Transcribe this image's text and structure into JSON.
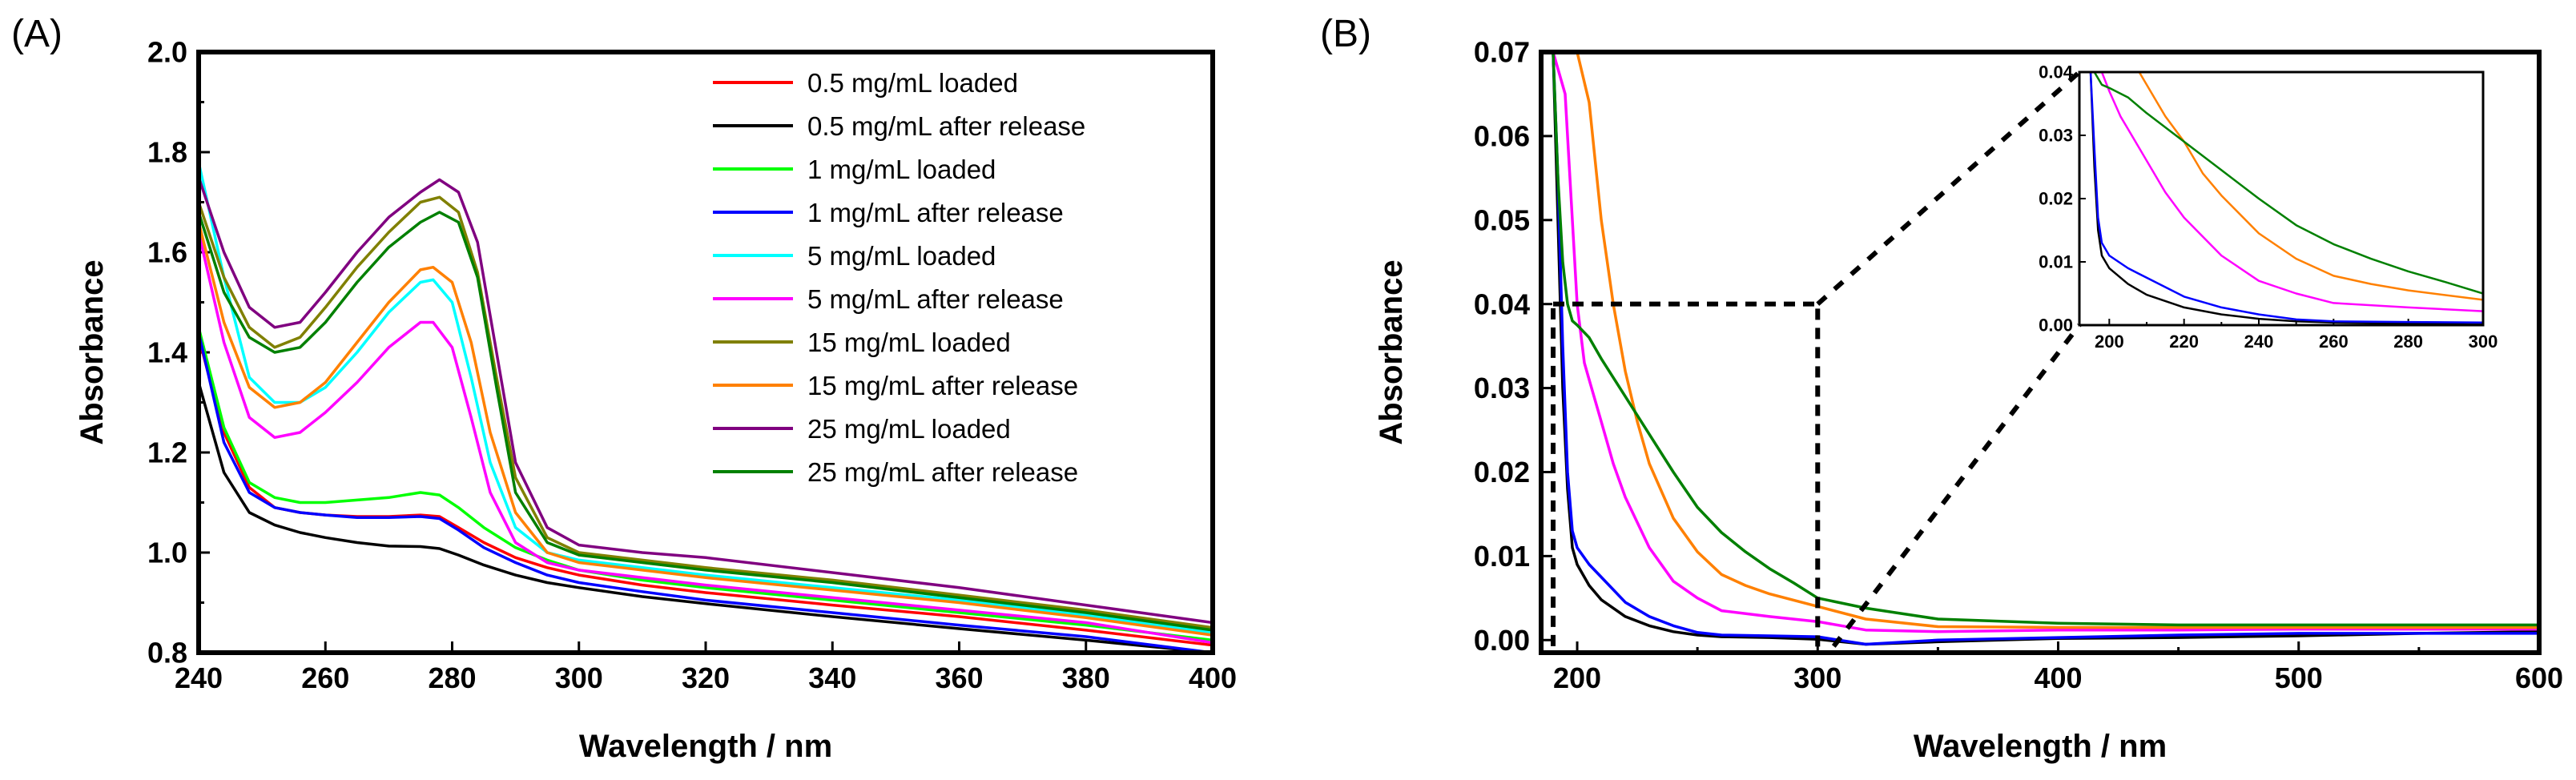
{
  "chart_data": [
    {
      "panel_label": "(A)",
      "type": "line",
      "xlabel": "Wavelength / nm",
      "ylabel": "Absorbance",
      "xlim": [
        240,
        400
      ],
      "ylim": [
        0.8,
        2.0
      ],
      "xticks": [
        240,
        260,
        280,
        300,
        320,
        340,
        360,
        380,
        400
      ],
      "xtick_labels": [
        "240",
        "260",
        "280",
        "300",
        "320",
        "340",
        "360",
        "380",
        "400"
      ],
      "yticks": [
        0.8,
        1.0,
        1.2,
        1.4,
        1.6,
        1.8,
        2.0
      ],
      "ytick_labels": [
        "0.8",
        "1.0",
        "1.2",
        "1.4",
        "1.6",
        "1.8",
        "2.0"
      ],
      "legend_position": "top-right",
      "series": [
        {
          "name": "0.5 mg/mL loaded",
          "color": "#ff0000",
          "x": [
            240,
            244,
            248,
            252,
            256,
            260,
            265,
            270,
            275,
            278,
            281,
            285,
            290,
            295,
            300,
            310,
            320,
            340,
            360,
            380,
            400
          ],
          "y": [
            1.43,
            1.24,
            1.13,
            1.09,
            1.08,
            1.075,
            1.072,
            1.072,
            1.075,
            1.072,
            1.05,
            1.02,
            0.99,
            0.97,
            0.955,
            0.935,
            0.92,
            0.895,
            0.872,
            0.845,
            0.815
          ]
        },
        {
          "name": "0.5 mg/mL after release",
          "color": "#000000",
          "x": [
            240,
            244,
            248,
            252,
            256,
            260,
            265,
            270,
            275,
            278,
            281,
            285,
            290,
            295,
            300,
            310,
            320,
            340,
            360,
            380,
            400
          ],
          "y": [
            1.34,
            1.16,
            1.08,
            1.055,
            1.04,
            1.03,
            1.02,
            1.013,
            1.012,
            1.008,
            0.995,
            0.975,
            0.955,
            0.94,
            0.93,
            0.912,
            0.898,
            0.872,
            0.848,
            0.825,
            0.8
          ]
        },
        {
          "name": "1 mg/mL loaded",
          "color": "#00ff00",
          "x": [
            240,
            244,
            248,
            252,
            256,
            260,
            265,
            270,
            275,
            278,
            281,
            285,
            290,
            295,
            300,
            310,
            320,
            340,
            360,
            380,
            400
          ],
          "y": [
            1.45,
            1.25,
            1.14,
            1.11,
            1.1,
            1.1,
            1.105,
            1.11,
            1.12,
            1.115,
            1.09,
            1.05,
            1.01,
            0.985,
            0.965,
            0.945,
            0.93,
            0.905,
            0.88,
            0.855,
            0.825
          ]
        },
        {
          "name": "1 mg/mL after release",
          "color": "#0000ff",
          "x": [
            240,
            244,
            248,
            252,
            256,
            260,
            265,
            270,
            275,
            278,
            281,
            285,
            290,
            295,
            300,
            310,
            320,
            340,
            360,
            380,
            400
          ],
          "y": [
            1.44,
            1.22,
            1.12,
            1.09,
            1.08,
            1.075,
            1.07,
            1.07,
            1.072,
            1.068,
            1.045,
            1.01,
            0.98,
            0.955,
            0.94,
            0.922,
            0.905,
            0.88,
            0.855,
            0.832,
            0.8
          ]
        },
        {
          "name": "5 mg/mL loaded",
          "color": "#00ffff",
          "x": [
            240,
            244,
            248,
            252,
            256,
            260,
            265,
            270,
            275,
            277,
            280,
            283,
            286,
            290,
            295,
            300,
            310,
            320,
            340,
            360,
            380,
            400
          ],
          "y": [
            1.78,
            1.55,
            1.35,
            1.3,
            1.3,
            1.33,
            1.4,
            1.48,
            1.54,
            1.545,
            1.5,
            1.35,
            1.18,
            1.05,
            1.0,
            0.985,
            0.97,
            0.955,
            0.93,
            0.905,
            0.875,
            0.84
          ]
        },
        {
          "name": "5 mg/mL after release",
          "color": "#ff00ff",
          "x": [
            240,
            244,
            248,
            252,
            256,
            260,
            265,
            270,
            275,
            277,
            280,
            283,
            286,
            290,
            295,
            300,
            310,
            320,
            340,
            360,
            380,
            400
          ],
          "y": [
            1.64,
            1.42,
            1.27,
            1.23,
            1.24,
            1.28,
            1.34,
            1.41,
            1.46,
            1.46,
            1.41,
            1.27,
            1.12,
            1.02,
            0.98,
            0.965,
            0.95,
            0.935,
            0.91,
            0.885,
            0.86,
            0.82
          ]
        },
        {
          "name": "15 mg/mL loaded",
          "color": "#808000",
          "x": [
            240,
            244,
            248,
            252,
            256,
            260,
            265,
            270,
            275,
            278,
            281,
            284,
            287,
            290,
            295,
            300,
            310,
            320,
            340,
            360,
            380,
            400
          ],
          "y": [
            1.7,
            1.55,
            1.45,
            1.41,
            1.43,
            1.49,
            1.57,
            1.64,
            1.7,
            1.71,
            1.68,
            1.56,
            1.35,
            1.15,
            1.03,
            1.0,
            0.985,
            0.97,
            0.945,
            0.915,
            0.885,
            0.85
          ]
        },
        {
          "name": "15 mg/mL after release",
          "color": "#ff8000",
          "x": [
            240,
            244,
            248,
            252,
            256,
            260,
            265,
            270,
            275,
            277,
            280,
            283,
            286,
            290,
            295,
            300,
            310,
            320,
            340,
            360,
            380,
            400
          ],
          "y": [
            1.66,
            1.46,
            1.33,
            1.29,
            1.3,
            1.34,
            1.42,
            1.5,
            1.565,
            1.57,
            1.54,
            1.42,
            1.24,
            1.08,
            1.0,
            0.98,
            0.965,
            0.95,
            0.925,
            0.9,
            0.87,
            0.835
          ]
        },
        {
          "name": "25 mg/mL loaded",
          "color": "#800080",
          "x": [
            240,
            244,
            248,
            252,
            256,
            260,
            265,
            270,
            275,
            278,
            281,
            284,
            287,
            290,
            295,
            300,
            310,
            320,
            340,
            360,
            380,
            400
          ],
          "y": [
            1.75,
            1.6,
            1.49,
            1.45,
            1.46,
            1.52,
            1.6,
            1.67,
            1.72,
            1.745,
            1.72,
            1.62,
            1.4,
            1.18,
            1.05,
            1.015,
            1.0,
            0.99,
            0.96,
            0.93,
            0.895,
            0.86
          ]
        },
        {
          "name": "25 mg/mL after release",
          "color": "#008000",
          "x": [
            240,
            244,
            248,
            252,
            256,
            260,
            265,
            270,
            275,
            278,
            281,
            284,
            287,
            290,
            295,
            300,
            310,
            320,
            340,
            360,
            380,
            400
          ],
          "y": [
            1.68,
            1.52,
            1.43,
            1.4,
            1.41,
            1.46,
            1.54,
            1.61,
            1.66,
            1.68,
            1.66,
            1.55,
            1.33,
            1.12,
            1.02,
            0.995,
            0.98,
            0.965,
            0.94,
            0.91,
            0.88,
            0.845
          ]
        }
      ]
    },
    {
      "panel_label": "(B)",
      "type": "line",
      "xlabel": "Wavelength / nm",
      "ylabel": "Absorbance",
      "xlim": [
        185,
        600
      ],
      "ylim": [
        -0.0015,
        0.07
      ],
      "xticks": [
        200,
        300,
        400,
        500,
        600
      ],
      "xtick_labels": [
        "200",
        "300",
        "400",
        "500",
        "600"
      ],
      "yticks": [
        0.0,
        0.01,
        0.02,
        0.03,
        0.04,
        0.05,
        0.06,
        0.07
      ],
      "ytick_labels": [
        "0.00",
        "0.01",
        "0.02",
        "0.03",
        "0.04",
        "0.05",
        "0.06",
        "0.07"
      ],
      "zoom_region": {
        "x": [
          190,
          300
        ],
        "y": [
          -0.0015,
          0.04
        ]
      },
      "series": [
        {
          "name": "0.5 mg/mL after release",
          "color": "#000000",
          "x": [
            190,
            192,
            194,
            196,
            198,
            200,
            205,
            210,
            220,
            230,
            240,
            250,
            260,
            280,
            300,
            320,
            350,
            400,
            450,
            500,
            550,
            600
          ],
          "y": [
            0.07,
            0.05,
            0.03,
            0.018,
            0.011,
            0.009,
            0.0065,
            0.0048,
            0.0028,
            0.0017,
            0.001,
            0.0006,
            0.0004,
            0.0003,
            0.0001,
            -0.0005,
            -0.0002,
            0.0002,
            0.0003,
            0.0005,
            0.0008,
            0.001
          ]
        },
        {
          "name": "1 mg/mL after release",
          "color": "#0000ff",
          "x": [
            190,
            192,
            194,
            196,
            198,
            200,
            205,
            210,
            220,
            230,
            240,
            250,
            260,
            280,
            300,
            320,
            350,
            400,
            450,
            500,
            550,
            600
          ],
          "y": [
            0.07,
            0.055,
            0.035,
            0.02,
            0.013,
            0.011,
            0.009,
            0.0075,
            0.0045,
            0.0028,
            0.0017,
            0.0009,
            0.0006,
            0.0005,
            0.0004,
            -0.0005,
            0.0,
            0.0003,
            0.0006,
            0.0008,
            0.0008,
            0.0008
          ]
        },
        {
          "name": "5 mg/mL after release",
          "color": "#ff00ff",
          "x": [
            190,
            195,
            198,
            200,
            203,
            205,
            210,
            215,
            220,
            230,
            240,
            250,
            260,
            280,
            300,
            320,
            350,
            400,
            450,
            500,
            550,
            600
          ],
          "y": [
            0.07,
            0.065,
            0.05,
            0.04,
            0.033,
            0.031,
            0.026,
            0.021,
            0.017,
            0.011,
            0.007,
            0.005,
            0.0035,
            0.0028,
            0.0022,
            0.0012,
            0.001,
            0.0012,
            0.0012,
            0.0013,
            0.0013,
            0.0013
          ]
        },
        {
          "name": "15 mg/mL after release",
          "color": "#ff8000",
          "x": [
            190,
            200,
            205,
            210,
            215,
            220,
            225,
            230,
            240,
            250,
            260,
            270,
            280,
            300,
            320,
            350,
            400,
            450,
            500,
            550,
            600
          ],
          "y": [
            0.07,
            0.07,
            0.064,
            0.05,
            0.04,
            0.032,
            0.026,
            0.021,
            0.0145,
            0.0105,
            0.0078,
            0.0065,
            0.0055,
            0.004,
            0.0025,
            0.0016,
            0.0015,
            0.0015,
            0.0015,
            0.0015,
            0.0015
          ]
        },
        {
          "name": "25 mg/mL after release",
          "color": "#008000",
          "x": [
            190,
            192,
            194,
            196,
            198,
            200,
            205,
            210,
            220,
            230,
            240,
            250,
            260,
            270,
            280,
            290,
            300,
            320,
            350,
            400,
            450,
            500,
            550,
            600
          ],
          "y": [
            0.07,
            0.055,
            0.045,
            0.04,
            0.038,
            0.0375,
            0.036,
            0.0335,
            0.029,
            0.0245,
            0.02,
            0.0158,
            0.0128,
            0.0105,
            0.0085,
            0.0068,
            0.005,
            0.0038,
            0.0025,
            0.002,
            0.0018,
            0.0018,
            0.0018,
            0.0018
          ]
        }
      ]
    },
    {
      "panel_label": "",
      "type": "line",
      "role": "inset",
      "xlim": [
        192,
        300
      ],
      "ylim": [
        0.0,
        0.04
      ],
      "xticks": [
        200,
        220,
        240,
        260,
        280,
        300
      ],
      "xtick_labels": [
        "200",
        "220",
        "240",
        "260",
        "280",
        "300"
      ],
      "yticks": [
        0.0,
        0.01,
        0.02,
        0.03,
        0.04
      ],
      "ytick_labels": [
        "0.00",
        "0.01",
        "0.02",
        "0.03",
        "0.04"
      ],
      "series": [
        {
          "name": "0.5 mg/mL after release",
          "color": "#000000",
          "x": [
            195,
            196,
            197,
            198,
            200,
            205,
            210,
            220,
            230,
            240,
            250,
            260,
            280,
            300
          ],
          "y": [
            0.04,
            0.025,
            0.015,
            0.011,
            0.009,
            0.0065,
            0.0048,
            0.0028,
            0.0017,
            0.001,
            0.0006,
            0.0004,
            0.0003,
            0.0001
          ]
        },
        {
          "name": "1 mg/mL after release",
          "color": "#0000ff",
          "x": [
            195,
            196,
            197,
            198,
            200,
            205,
            210,
            220,
            230,
            240,
            250,
            260,
            280,
            300
          ],
          "y": [
            0.04,
            0.028,
            0.017,
            0.013,
            0.011,
            0.009,
            0.0075,
            0.0045,
            0.0028,
            0.0017,
            0.0009,
            0.0006,
            0.0005,
            0.0004
          ]
        },
        {
          "name": "5 mg/mL after release",
          "color": "#ff00ff",
          "x": [
            198,
            200,
            203,
            205,
            210,
            215,
            220,
            230,
            240,
            250,
            260,
            280,
            300
          ],
          "y": [
            0.04,
            0.037,
            0.033,
            0.031,
            0.026,
            0.021,
            0.017,
            0.011,
            0.007,
            0.005,
            0.0035,
            0.0028,
            0.0022
          ]
        },
        {
          "name": "15 mg/mL after release",
          "color": "#ff8000",
          "x": [
            208,
            210,
            215,
            220,
            225,
            230,
            240,
            250,
            260,
            270,
            280,
            300
          ],
          "y": [
            0.04,
            0.038,
            0.033,
            0.029,
            0.024,
            0.0205,
            0.0145,
            0.0105,
            0.0078,
            0.0065,
            0.0055,
            0.004
          ]
        },
        {
          "name": "25 mg/mL after release",
          "color": "#008000",
          "x": [
            196,
            198,
            200,
            205,
            210,
            220,
            230,
            240,
            250,
            260,
            270,
            280,
            290,
            300
          ],
          "y": [
            0.04,
            0.038,
            0.0375,
            0.036,
            0.0335,
            0.029,
            0.0245,
            0.02,
            0.0158,
            0.0128,
            0.0105,
            0.0085,
            0.0068,
            0.005
          ]
        }
      ]
    }
  ]
}
